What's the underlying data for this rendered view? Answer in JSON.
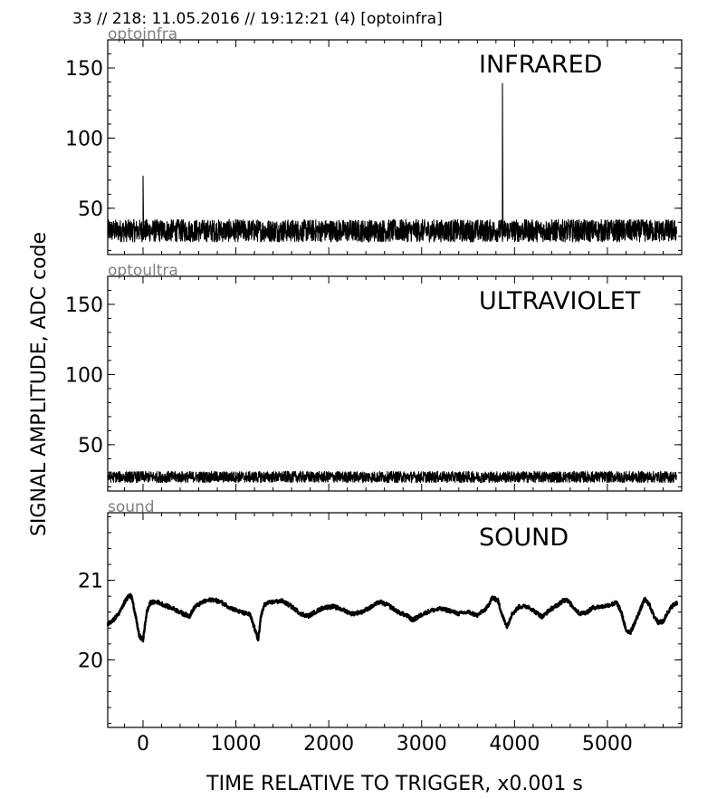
{
  "header": {
    "title": "33 // 218:   11.05.2016 // 19:12:21 (4)  [optoinfra]"
  },
  "colors": {
    "trace": "#000000",
    "channel_tag": "#808080",
    "axes": "#000000",
    "background": "#ffffff"
  },
  "axes_labels": {
    "xlabel": "TIME RELATIVE TO TRIGGER,   x0.001 s",
    "ylabel": "SIGNAL AMPLITUDE,  ADC code"
  },
  "chart_data": [
    {
      "type": "line",
      "channel": "optoinfra",
      "title": "INFRARED",
      "xlim": [
        -380,
        5800
      ],
      "ylim": [
        17,
        170
      ],
      "xticks": [
        0,
        1000,
        2000,
        3000,
        4000,
        5000
      ],
      "yticks": [
        50,
        100,
        150
      ],
      "ytick_labels": [
        "50",
        "100",
        "150"
      ],
      "grid": false,
      "series": [
        {
          "baseline": 34,
          "noise_amplitude": 8,
          "spikes": [
            {
              "x": 0,
              "y": 73
            },
            {
              "x": 3870,
              "y": 139
            }
          ]
        }
      ]
    },
    {
      "type": "line",
      "channel": "optoultra",
      "title": "ULTRAVIOLET",
      "xlim": [
        -380,
        5800
      ],
      "ylim": [
        17,
        170
      ],
      "xticks": [
        0,
        1000,
        2000,
        3000,
        4000,
        5000
      ],
      "yticks": [
        50,
        100,
        150
      ],
      "ytick_labels": [
        "50",
        "100",
        "150"
      ],
      "grid": false,
      "series": [
        {
          "baseline": 27,
          "noise_amplitude": 4,
          "spikes": []
        }
      ]
    },
    {
      "type": "line",
      "channel": "sound",
      "title": "SOUND",
      "xlim": [
        -380,
        5800
      ],
      "ylim": [
        19.15,
        21.85
      ],
      "xticks": [
        0,
        1000,
        2000,
        3000,
        4000,
        5000
      ],
      "xtick_labels": [
        "0",
        "1000",
        "2000",
        "3000",
        "4000",
        "5000"
      ],
      "yticks": [
        20,
        21
      ],
      "ytick_labels": [
        "20",
        "21"
      ],
      "grid": false,
      "series": [
        {
          "x": [
            -380,
            -320,
            -250,
            -200,
            -150,
            -120,
            -80,
            -40,
            0,
            40,
            80,
            150,
            250,
            350,
            430,
            500,
            560,
            650,
            750,
            850,
            950,
            1050,
            1150,
            1200,
            1240,
            1270,
            1310,
            1400,
            1500,
            1600,
            1700,
            1780,
            1850,
            1950,
            2050,
            2150,
            2250,
            2350,
            2450,
            2550,
            2650,
            2750,
            2850,
            2900,
            2950,
            3000,
            3100,
            3200,
            3300,
            3400,
            3500,
            3600,
            3700,
            3760,
            3820,
            3870,
            3920,
            3970,
            4050,
            4150,
            4250,
            4300,
            4380,
            4450,
            4520,
            4560,
            4620,
            4700,
            4780,
            4850,
            4950,
            5050,
            5100,
            5150,
            5200,
            5250,
            5300,
            5350,
            5400,
            5450,
            5500,
            5550,
            5600,
            5650,
            5700,
            5750
          ],
          "y": [
            20.45,
            20.5,
            20.6,
            20.72,
            20.82,
            20.78,
            20.55,
            20.3,
            20.25,
            20.6,
            20.72,
            20.73,
            20.68,
            20.63,
            20.58,
            20.55,
            20.67,
            20.73,
            20.76,
            20.72,
            20.65,
            20.6,
            20.57,
            20.4,
            20.25,
            20.55,
            20.7,
            20.73,
            20.74,
            20.67,
            20.58,
            20.55,
            20.6,
            20.66,
            20.67,
            20.63,
            20.58,
            20.6,
            20.66,
            20.73,
            20.68,
            20.6,
            20.55,
            20.5,
            20.53,
            20.57,
            20.62,
            20.64,
            20.62,
            20.58,
            20.6,
            20.56,
            20.65,
            20.78,
            20.75,
            20.55,
            20.42,
            20.57,
            20.67,
            20.67,
            20.58,
            20.54,
            20.63,
            20.68,
            20.74,
            20.76,
            20.68,
            20.58,
            20.6,
            20.66,
            20.67,
            20.7,
            20.72,
            20.6,
            20.37,
            20.35,
            20.48,
            20.62,
            20.76,
            20.7,
            20.55,
            20.47,
            20.48,
            20.6,
            20.68,
            20.72
          ]
        }
      ]
    }
  ]
}
